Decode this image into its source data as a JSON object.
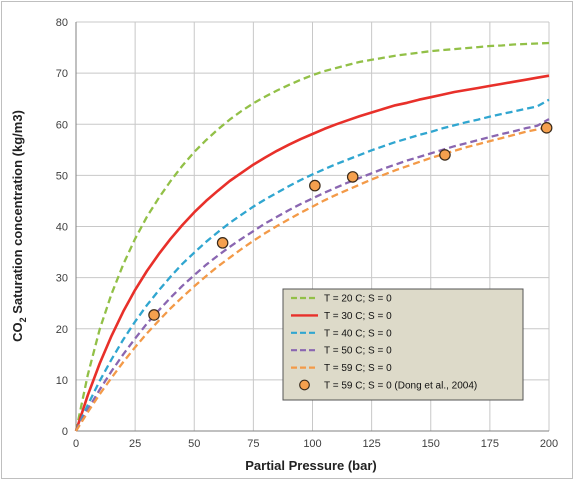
{
  "chart_data": {
    "type": "line",
    "xlabel": "Partial Pressure (bar)",
    "ylabel": {
      "prefix": "CO",
      "subscript": "2",
      "suffix": " Saturation concentration (kg/m3)"
    },
    "xlim": [
      0,
      200
    ],
    "ylim": [
      0,
      80
    ],
    "x_ticks": [
      0,
      25,
      50,
      75,
      100,
      125,
      150,
      175,
      200
    ],
    "y_ticks": [
      0,
      10,
      20,
      30,
      40,
      50,
      60,
      70,
      80
    ],
    "grid": true,
    "legend_position": "bottom-right",
    "x": [
      0,
      5,
      10,
      15,
      20,
      25,
      30,
      35,
      40,
      45,
      50,
      55,
      60,
      65,
      70,
      75,
      80,
      85,
      90,
      95,
      100,
      105,
      110,
      115,
      120,
      125,
      130,
      135,
      140,
      145,
      150,
      155,
      160,
      165,
      170,
      175,
      180,
      185,
      190,
      195,
      200
    ],
    "series": [
      {
        "name": "T = 20 C; S = 0",
        "style": "dashed",
        "color": "#92c047",
        "values": [
          0,
          11.0,
          19.9,
          26.8,
          32.6,
          37.6,
          41.9,
          45.6,
          48.9,
          51.9,
          54.6,
          56.9,
          59.0,
          60.9,
          62.6,
          64.1,
          65.4,
          66.6,
          67.7,
          68.7,
          69.6,
          70.4,
          71.0,
          71.6,
          72.2,
          72.6,
          73.0,
          73.4,
          73.7,
          74.0,
          74.3,
          74.5,
          74.7,
          74.9,
          75.1,
          75.3,
          75.4,
          75.6,
          75.7,
          75.8,
          75.9
        ]
      },
      {
        "name": "T = 30 C; S = 0",
        "style": "solid",
        "color": "#e8302a",
        "values": [
          0,
          7.0,
          13.2,
          18.6,
          23.4,
          27.6,
          31.3,
          34.6,
          37.6,
          40.3,
          42.8,
          45.0,
          47.0,
          48.9,
          50.5,
          52.1,
          53.5,
          54.8,
          56.0,
          57.1,
          58.1,
          59.1,
          60.0,
          60.8,
          61.6,
          62.3,
          63.0,
          63.7,
          64.2,
          64.8,
          65.3,
          65.8,
          66.3,
          66.7,
          67.1,
          67.5,
          67.9,
          68.3,
          68.7,
          69.1,
          69.5
        ]
      },
      {
        "name": "T = 40 C; S = 0",
        "style": "dashed",
        "color": "#30a6d0",
        "values": [
          0,
          5.1,
          9.8,
          14.0,
          17.9,
          21.4,
          24.6,
          27.5,
          30.2,
          32.7,
          34.9,
          37.0,
          38.9,
          40.7,
          42.3,
          43.9,
          45.3,
          46.6,
          47.9,
          49.1,
          50.2,
          51.2,
          52.2,
          53.1,
          54.0,
          54.9,
          55.7,
          56.5,
          57.2,
          57.9,
          58.5,
          59.2,
          59.8,
          60.4,
          60.9,
          61.5,
          62.0,
          62.5,
          63.0,
          63.5,
          64.8
        ]
      },
      {
        "name": "T = 50 C; S = 0",
        "style": "dashed",
        "color": "#8a66b1",
        "values": [
          0,
          4.2,
          8.1,
          11.7,
          15.0,
          18.1,
          21.0,
          23.6,
          26.1,
          28.4,
          30.5,
          32.5,
          34.3,
          36.0,
          37.6,
          39.1,
          40.6,
          41.9,
          43.2,
          44.4,
          45.5,
          46.6,
          47.6,
          48.6,
          49.5,
          50.4,
          51.3,
          52.1,
          52.9,
          53.6,
          54.3,
          55.0,
          55.7,
          56.3,
          56.9,
          57.5,
          58.1,
          58.6,
          59.2,
          59.7,
          61.0
        ]
      },
      {
        "name": "T = 59 C; S = 0",
        "style": "dashed",
        "color": "#f39a48",
        "values": [
          0,
          3.7,
          7.2,
          10.4,
          13.5,
          16.4,
          19.1,
          21.6,
          24.0,
          26.2,
          28.3,
          30.3,
          32.2,
          33.9,
          35.6,
          37.2,
          38.7,
          40.1,
          41.4,
          42.7,
          43.9,
          45.1,
          46.2,
          47.2,
          48.2,
          49.2,
          50.1,
          51.0,
          51.8,
          52.6,
          53.4,
          54.1,
          54.8,
          55.5,
          56.1,
          56.7,
          57.3,
          57.9,
          58.5,
          59.0,
          59.5
        ]
      }
    ],
    "points_series": {
      "name": "T = 59 C; S = 0 (Dong et al., 2004)",
      "fill": "#f5a04e",
      "stroke": "#3a2a1a",
      "points": [
        {
          "x": 33,
          "y": 22.7
        },
        {
          "x": 62,
          "y": 36.8
        },
        {
          "x": 101,
          "y": 48.0
        },
        {
          "x": 117,
          "y": 49.7
        },
        {
          "x": 156,
          "y": 54.0
        },
        {
          "x": 199,
          "y": 59.3
        }
      ]
    },
    "colors": {
      "legend_background": "#dddac9",
      "legend_border": "#555555",
      "grid": "#c8c8c8",
      "axis": "#808080",
      "outer_border": "#bfbfbf"
    }
  }
}
